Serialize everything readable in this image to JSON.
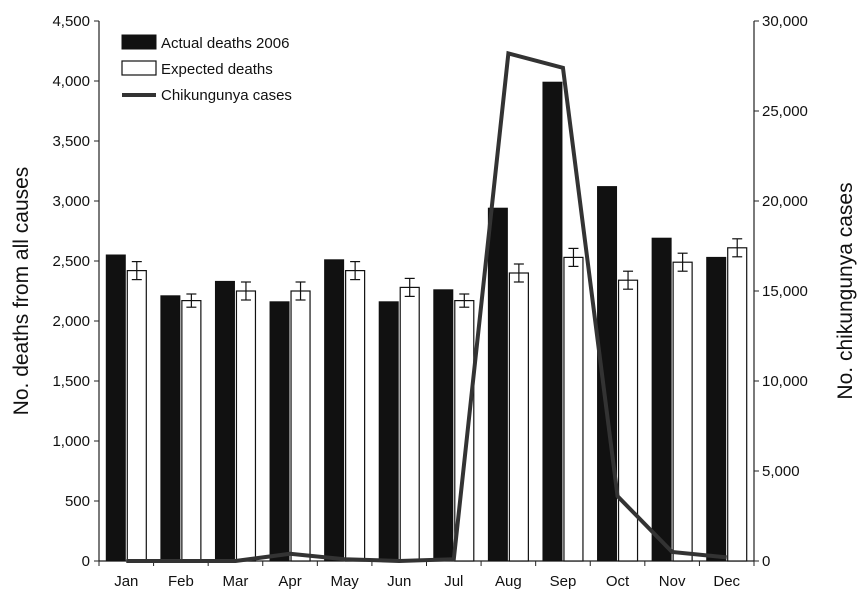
{
  "chart_data": {
    "type": "bar",
    "categories": [
      "Jan",
      "Feb",
      "Mar",
      "Apr",
      "May",
      "Jun",
      "Jul",
      "Aug",
      "Sep",
      "Oct",
      "Nov",
      "Dec"
    ],
    "series": [
      {
        "name": "Actual deaths 2006",
        "type": "bar",
        "axis": "left",
        "color": "#111111",
        "values": [
          2550,
          2210,
          2330,
          2160,
          2510,
          2160,
          2260,
          2940,
          3990,
          3120,
          2690,
          2530
        ]
      },
      {
        "name": "Expected deaths",
        "type": "bar",
        "axis": "left",
        "color": "#ffffff",
        "values": [
          2420,
          2170,
          2250,
          2250,
          2420,
          2280,
          2170,
          2400,
          2530,
          2340,
          2490,
          2610
        ],
        "error": [
          75,
          55,
          75,
          75,
          75,
          75,
          55,
          75,
          75,
          75,
          75,
          75
        ]
      },
      {
        "name": "Chikungunya cases",
        "type": "line",
        "axis": "right",
        "color": "#333333",
        "values": [
          0,
          0,
          0,
          400,
          100,
          0,
          100,
          28200,
          27400,
          3600,
          500,
          200
        ]
      }
    ],
    "ylabel": "No. deaths from all causes",
    "y2label": "No. chikungunya cases",
    "ylim": [
      0,
      4500
    ],
    "y2lim": [
      0,
      30000
    ],
    "yticks": [
      0,
      500,
      1000,
      1500,
      2000,
      2500,
      3000,
      3500,
      4000,
      4500
    ],
    "yticklabels": [
      "0",
      "500",
      "1,000",
      "1,500",
      "2,000",
      "2,500",
      "3,000",
      "3,500",
      "4,000",
      "4,500"
    ],
    "y2ticks": [
      0,
      5000,
      10000,
      15000,
      20000,
      25000,
      30000
    ],
    "y2ticklabels": [
      "0",
      "5,000",
      "10,000",
      "15,000",
      "20,000",
      "25,000",
      "30,000"
    ],
    "grid": false,
    "legend": "top-left"
  }
}
